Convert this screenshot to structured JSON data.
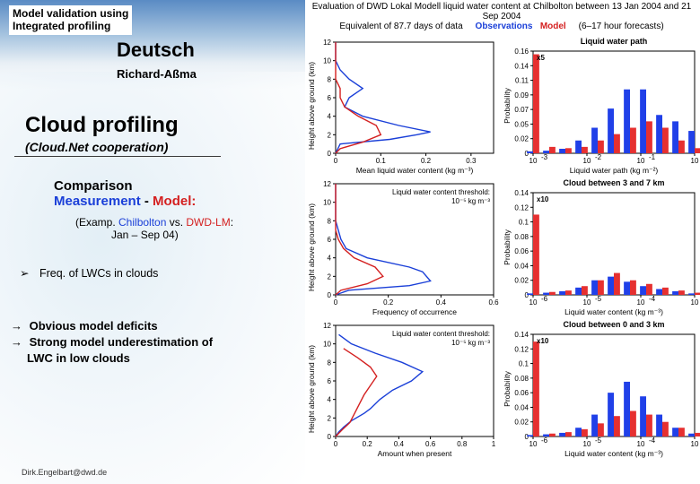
{
  "header": {
    "line1": "Model validation using",
    "line2": "Integrated profiling",
    "brand_partial": "Deutsch",
    "subbrand_partial": "Richard-Aßma"
  },
  "main": {
    "title": "Cloud profiling",
    "subtitle": "(Cloud.Net cooperation)"
  },
  "comparison": {
    "label": "Comparison",
    "measurement": "Measurement",
    "sep": "  -  ",
    "model": "Model:",
    "examp_prefix": "(Examp. ",
    "site": "Chilbolton ",
    "vs": "vs. ",
    "lm": "DWD-LM",
    "examp_suffix": ":",
    "period": "Jan – Sep 04)"
  },
  "freq": {
    "bullet": "➢",
    "text": "Freq. of  LWCs in clouds"
  },
  "findings": {
    "arrow": "→",
    "f1": "Obvious model deficits",
    "f2a": "Strong model underestimation of",
    "f2b": "LWC in low clouds"
  },
  "footer": {
    "email": "Dirk.Engelbart@dwd.de"
  },
  "charts": {
    "header_title": "Evaluation of DWD Lokal Modell liquid water content at Chilbolton between 13 Jan 2004 and 21 Sep 2004",
    "header_sub_left": "Equivalent of 87.7 days of data",
    "header_sub_right": "(6–17 hour forecasts)",
    "obs_label": "Observations",
    "mod_label": "Model",
    "colors": {
      "obs": "#1a3fd8",
      "model": "#d42020",
      "model_fill": "#e63030",
      "obs_fill": "#2040e8",
      "axis": "#000000",
      "grid": "#f5f5f5",
      "bg": "#ffffff"
    },
    "row1_left": {
      "ylabel": "Height above ground (km)",
      "xlabel": "Mean liquid water content (kg m⁻³)",
      "ylim": [
        0,
        12
      ],
      "xlim": [
        0,
        0.35
      ],
      "obs_line": [
        [
          0,
          0
        ],
        [
          0.01,
          1
        ],
        [
          0.12,
          1.5
        ],
        [
          0.18,
          2
        ],
        [
          0.21,
          2.3
        ],
        [
          0.14,
          3
        ],
        [
          0.06,
          4
        ],
        [
          0.02,
          5
        ],
        [
          0.03,
          6
        ],
        [
          0.06,
          7
        ],
        [
          0.03,
          8
        ],
        [
          0.01,
          9
        ],
        [
          0,
          10
        ],
        [
          0,
          11
        ],
        [
          0,
          12
        ]
      ],
      "mod_line": [
        [
          0,
          0
        ],
        [
          0.01,
          0.5
        ],
        [
          0.06,
          1.2
        ],
        [
          0.1,
          2
        ],
        [
          0.09,
          3
        ],
        [
          0.05,
          4
        ],
        [
          0.02,
          5
        ],
        [
          0.01,
          6
        ],
        [
          0.01,
          7
        ],
        [
          0,
          8
        ],
        [
          0,
          9
        ],
        [
          0,
          10
        ],
        [
          0,
          11
        ],
        [
          0,
          12
        ]
      ]
    },
    "row1_right": {
      "title": "Liquid water path",
      "ylabel": "Probability",
      "xlabel": "Liquid water path (kg m⁻²)",
      "ylim": [
        0,
        0.16
      ],
      "xticks_log": [
        -3,
        -2,
        -1,
        0
      ],
      "note": "x5",
      "note_at": 0,
      "bins_centers_log": [
        -3,
        -2.7,
        -2.4,
        -2.1,
        -1.8,
        -1.5,
        -1.2,
        -0.9,
        -0.6,
        -0.3,
        0
      ],
      "obs_bars": [
        0.003,
        0.004,
        0.007,
        0.02,
        0.04,
        0.07,
        0.1,
        0.1,
        0.06,
        0.05,
        0.035
      ],
      "model_bars": [
        0.155,
        0.01,
        0.008,
        0.01,
        0.02,
        0.03,
        0.04,
        0.05,
        0.04,
        0.02,
        0.008
      ]
    },
    "row2_left": {
      "ylabel": "Height above ground (km)",
      "xlabel": "Frequency of occurrence",
      "ylim": [
        0,
        12
      ],
      "xlim": [
        0,
        0.6
      ],
      "annotation": "Liquid water content threshold:\n10⁻⁵ kg m⁻³",
      "obs_line": [
        [
          0,
          0
        ],
        [
          0.05,
          0.5
        ],
        [
          0.28,
          1
        ],
        [
          0.36,
          1.5
        ],
        [
          0.33,
          2.5
        ],
        [
          0.28,
          3
        ],
        [
          0.12,
          4
        ],
        [
          0.04,
          5
        ],
        [
          0.02,
          6
        ],
        [
          0.01,
          7
        ],
        [
          0,
          8
        ],
        [
          0,
          10
        ],
        [
          0,
          12
        ]
      ],
      "mod_line": [
        [
          0,
          0
        ],
        [
          0.02,
          0.5
        ],
        [
          0.12,
          1.2
        ],
        [
          0.18,
          2
        ],
        [
          0.15,
          3
        ],
        [
          0.07,
          4
        ],
        [
          0.03,
          5
        ],
        [
          0.01,
          6
        ],
        [
          0,
          7
        ],
        [
          0,
          8
        ],
        [
          0,
          10
        ],
        [
          0,
          12
        ]
      ]
    },
    "row2_right": {
      "title": "Cloud between 3 and 7 km",
      "ylabel": "Probability",
      "xlabel": "Liquid water content (kg m⁻³)",
      "ylim": [
        0,
        0.14
      ],
      "xticks_log": [
        -6,
        -5,
        -4,
        -3
      ],
      "note": "x10",
      "note_at": 0,
      "bins_centers_log": [
        -6,
        -5.7,
        -5.4,
        -5.1,
        -4.8,
        -4.5,
        -4.2,
        -3.9,
        -3.6,
        -3.3,
        -3
      ],
      "obs_bars": [
        0.002,
        0.003,
        0.005,
        0.01,
        0.02,
        0.025,
        0.018,
        0.012,
        0.008,
        0.005,
        0.002
      ],
      "model_bars": [
        0.11,
        0.004,
        0.006,
        0.012,
        0.02,
        0.03,
        0.02,
        0.015,
        0.01,
        0.006,
        0.003
      ]
    },
    "row3_left": {
      "ylabel": "Height above ground (km)",
      "xlabel": "Amount when present",
      "ylim": [
        0,
        12
      ],
      "xlim": [
        0,
        1.0
      ],
      "annotation": "Liquid water content threshold:\n10⁻⁵ kg m⁻³",
      "obs_line": [
        [
          0,
          0
        ],
        [
          0.02,
          0.5
        ],
        [
          0.05,
          1
        ],
        [
          0.1,
          1.7
        ],
        [
          0.18,
          2.5
        ],
        [
          0.22,
          3
        ],
        [
          0.28,
          4
        ],
        [
          0.36,
          5
        ],
        [
          0.48,
          6
        ],
        [
          0.55,
          7
        ],
        [
          0.42,
          8
        ],
        [
          0.25,
          9
        ],
        [
          0.1,
          10
        ],
        [
          0.02,
          11
        ]
      ],
      "mod_line": [
        [
          0,
          0
        ],
        [
          0.04,
          0.7
        ],
        [
          0.09,
          1.5
        ],
        [
          0.12,
          2.5
        ],
        [
          0.15,
          3.5
        ],
        [
          0.18,
          4.5
        ],
        [
          0.22,
          5.5
        ],
        [
          0.26,
          6.5
        ],
        [
          0.22,
          7.5
        ],
        [
          0.14,
          8.5
        ],
        [
          0.05,
          9.5
        ]
      ]
    },
    "row3_right": {
      "title": "Cloud between 0 and 3 km",
      "ylabel": "Probability",
      "xlabel": "Liquid water content (kg m⁻³)",
      "ylim": [
        0,
        0.14
      ],
      "xticks_log": [
        -6,
        -5,
        -4,
        -3
      ],
      "note": "x10",
      "note_at": 0,
      "bins_centers_log": [
        -6,
        -5.7,
        -5.4,
        -5.1,
        -4.8,
        -4.5,
        -4.2,
        -3.9,
        -3.6,
        -3.3,
        -3
      ],
      "obs_bars": [
        0.002,
        0.003,
        0.005,
        0.012,
        0.03,
        0.06,
        0.075,
        0.055,
        0.03,
        0.012,
        0.004
      ],
      "model_bars": [
        0.13,
        0.004,
        0.006,
        0.01,
        0.018,
        0.028,
        0.035,
        0.03,
        0.02,
        0.012,
        0.005
      ]
    }
  }
}
